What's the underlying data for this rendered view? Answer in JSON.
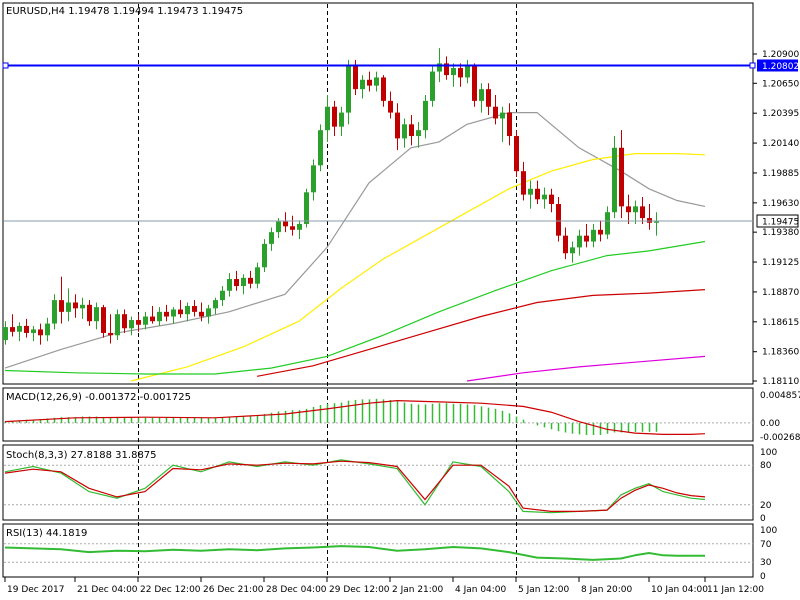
{
  "main_header": "EURUSD,H4  1.19478 1.19494 1.19473 1.19475",
  "price_axis": {
    "min": 1.1811,
    "max": 1.2119,
    "ticks": [
      "1.20900",
      "1.20650",
      "1.20395",
      "1.20140",
      "1.19885",
      "1.19630",
      "1.19380",
      "1.19125",
      "1.18870",
      "1.18615",
      "1.18360",
      "1.18110"
    ]
  },
  "price_markers": {
    "resistance": {
      "label": "1.20802",
      "value": 1.20802,
      "color": "#0000ff"
    },
    "current": {
      "label": "1.19475",
      "value": 1.19475
    }
  },
  "time_axis": [
    {
      "label": "19 Dec 2017",
      "bar": 0
    },
    {
      "label": "21 Dec 04:00",
      "bar": 10
    },
    {
      "label": "22 Dec 12:00",
      "bar": 19
    },
    {
      "label": "26 Dec 21:00",
      "bar": 28
    },
    {
      "label": "28 Dec 04:00",
      "bar": 37
    },
    {
      "label": "29 Dec 12:00",
      "bar": 46
    },
    {
      "label": "2 Jan 21:00",
      "bar": 55
    },
    {
      "label": "4 Jan 04:00",
      "bar": 64
    },
    {
      "label": "5 Jan 12:00",
      "bar": 73
    },
    {
      "label": "8 Jan 20:00",
      "bar": 82
    },
    {
      "label": "10 Jan 04:00",
      "bar": 92
    },
    {
      "label": "11 Jan 12:00",
      "bar": 100
    }
  ],
  "colors": {
    "bull": "#2ca02c",
    "bear": "#c00000",
    "ma_short": "#999999",
    "ma_mid": "#ffee00",
    "ma_long": "#22cc22",
    "ma_longer": "#cc0000",
    "ma_longest": "#dd00dd",
    "macd_hist": "#33bb33",
    "macd_signal": "#cc0000",
    "stoch_main": "#33bb33",
    "stoch_signal": "#cc0000",
    "rsi": "#33bb33"
  },
  "indicators": {
    "macd": {
      "header": "MACD(12,26,9) -0.001372 -0.001725",
      "ticks": [
        "0.004857",
        "0.00",
        "-0.002687"
      ],
      "max": 0.004857,
      "min": -0.002687
    },
    "stoch": {
      "header": "Stoch(8,3,3) 27.8188 31.8875",
      "ticks": [
        "100",
        "80",
        "20",
        "0"
      ]
    },
    "rsi": {
      "header": "RSI(13) 44.1819",
      "ticks": [
        "100",
        "70",
        "30",
        "0"
      ]
    }
  },
  "chart_data": {
    "type": "candlestick",
    "symbol": "EURUSD",
    "timeframe": "H4",
    "vertical_separators_at_bars": [
      19,
      46,
      73
    ],
    "candles": [
      [
        1.1846,
        1.1862,
        1.1842,
        1.1857
      ],
      [
        1.1857,
        1.1868,
        1.1849,
        1.1853
      ],
      [
        1.1853,
        1.1861,
        1.1845,
        1.1858
      ],
      [
        1.1858,
        1.1864,
        1.1848,
        1.1852
      ],
      [
        1.1852,
        1.1858,
        1.1845,
        1.1855
      ],
      [
        1.1855,
        1.186,
        1.1842,
        1.185
      ],
      [
        1.185,
        1.1865,
        1.1845,
        1.186
      ],
      [
        1.186,
        1.1885,
        1.1855,
        1.188
      ],
      [
        1.188,
        1.19,
        1.186,
        1.187
      ],
      [
        1.187,
        1.189,
        1.1862,
        1.1878
      ],
      [
        1.1878,
        1.1885,
        1.1865,
        1.1873
      ],
      [
        1.1873,
        1.1882,
        1.1864,
        1.1876
      ],
      [
        1.1876,
        1.188,
        1.1858,
        1.1862
      ],
      [
        1.1862,
        1.1878,
        1.1855,
        1.1874
      ],
      [
        1.1874,
        1.1876,
        1.1848,
        1.1852
      ],
      [
        1.1852,
        1.1868,
        1.1843,
        1.185
      ],
      [
        1.185,
        1.1872,
        1.1846,
        1.1868
      ],
      [
        1.1868,
        1.1872,
        1.1852,
        1.1856
      ],
      [
        1.1856,
        1.1866,
        1.185,
        1.1863
      ],
      [
        1.1863,
        1.1868,
        1.1853,
        1.1859
      ],
      [
        1.1859,
        1.187,
        1.1855,
        1.1866
      ],
      [
        1.1866,
        1.1875,
        1.186,
        1.1862
      ],
      [
        1.1862,
        1.1874,
        1.1858,
        1.187
      ],
      [
        1.187,
        1.1876,
        1.1862,
        1.1866
      ],
      [
        1.1866,
        1.1874,
        1.186,
        1.1872
      ],
      [
        1.1872,
        1.188,
        1.1865,
        1.1868
      ],
      [
        1.1868,
        1.1878,
        1.1862,
        1.1875
      ],
      [
        1.1875,
        1.188,
        1.1866,
        1.187
      ],
      [
        1.187,
        1.1878,
        1.1862,
        1.1866
      ],
      [
        1.1866,
        1.1876,
        1.186,
        1.1873
      ],
      [
        1.1873,
        1.1882,
        1.1868,
        1.188
      ],
      [
        1.188,
        1.1892,
        1.1875,
        1.1888
      ],
      [
        1.1888,
        1.1903,
        1.1883,
        1.1898
      ],
      [
        1.1898,
        1.1905,
        1.1888,
        1.1892
      ],
      [
        1.1892,
        1.1902,
        1.1885,
        1.1899
      ],
      [
        1.1899,
        1.1905,
        1.189,
        1.1894
      ],
      [
        1.1894,
        1.1912,
        1.189,
        1.1908
      ],
      [
        1.1908,
        1.1932,
        1.1904,
        1.1928
      ],
      [
        1.1928,
        1.1942,
        1.1922,
        1.1938
      ],
      [
        1.1938,
        1.195,
        1.1933,
        1.1947
      ],
      [
        1.1947,
        1.1955,
        1.1938,
        1.1943
      ],
      [
        1.1943,
        1.1952,
        1.1935,
        1.194
      ],
      [
        1.194,
        1.1948,
        1.1932,
        1.1945
      ],
      [
        1.1945,
        1.1975,
        1.1942,
        1.1972
      ],
      [
        1.1972,
        1.2,
        1.1965,
        1.1995
      ],
      [
        1.1995,
        1.203,
        1.199,
        1.2025
      ],
      [
        1.2025,
        1.2055,
        1.2015,
        1.2045
      ],
      [
        1.2045,
        1.205,
        1.202,
        1.2028
      ],
      [
        1.2028,
        1.2045,
        1.202,
        1.204
      ],
      [
        1.204,
        1.2085,
        1.203,
        1.208
      ],
      [
        1.208,
        1.2085,
        1.2055,
        1.206
      ],
      [
        1.206,
        1.2072,
        1.2052,
        1.2068
      ],
      [
        1.2068,
        1.2075,
        1.2058,
        1.2063
      ],
      [
        1.2063,
        1.2075,
        1.2058,
        1.207
      ],
      [
        1.207,
        1.2072,
        1.2045,
        1.205
      ],
      [
        1.205,
        1.2058,
        1.2035,
        1.204
      ],
      [
        1.204,
        1.2048,
        1.2008,
        1.2018
      ],
      [
        1.2018,
        1.2035,
        1.201,
        1.203
      ],
      [
        1.203,
        1.2038,
        1.2012,
        1.202
      ],
      [
        1.202,
        1.2032,
        1.201,
        1.2025
      ],
      [
        1.2025,
        1.2055,
        1.2018,
        1.205
      ],
      [
        1.205,
        1.208,
        1.2045,
        1.2075
      ],
      [
        1.2075,
        1.2095,
        1.2066,
        1.2082
      ],
      [
        1.2082,
        1.2088,
        1.2068,
        1.2072
      ],
      [
        1.2072,
        1.2082,
        1.2062,
        1.2078
      ],
      [
        1.2078,
        1.2082,
        1.2062,
        1.207
      ],
      [
        1.207,
        1.2085,
        1.2065,
        1.208
      ],
      [
        1.208,
        1.2082,
        1.2045,
        1.205
      ],
      [
        1.205,
        1.2065,
        1.204,
        1.206
      ],
      [
        1.206,
        1.2065,
        1.2038,
        1.2045
      ],
      [
        1.2045,
        1.2055,
        1.203,
        1.2035
      ],
      [
        1.2035,
        1.2045,
        1.2015,
        1.204
      ],
      [
        1.204,
        1.2048,
        1.2012,
        1.202
      ],
      [
        1.202,
        1.2025,
        1.1985,
        1.199
      ],
      [
        1.199,
        1.1998,
        1.1965,
        1.197
      ],
      [
        1.197,
        1.1982,
        1.1958,
        1.1975
      ],
      [
        1.1975,
        1.1982,
        1.1962,
        1.1966
      ],
      [
        1.1966,
        1.1976,
        1.1958,
        1.197
      ],
      [
        1.197,
        1.1975,
        1.1955,
        1.1962
      ],
      [
        1.1962,
        1.1968,
        1.193,
        1.1935
      ],
      [
        1.1935,
        1.1942,
        1.1915,
        1.192
      ],
      [
        1.192,
        1.193,
        1.1912,
        1.1925
      ],
      [
        1.1925,
        1.194,
        1.1918,
        1.1935
      ],
      [
        1.1935,
        1.1945,
        1.1925,
        1.193
      ],
      [
        1.193,
        1.1945,
        1.1925,
        1.194
      ],
      [
        1.194,
        1.1948,
        1.193,
        1.1936
      ],
      [
        1.1936,
        1.196,
        1.1932,
        1.1955
      ],
      [
        1.1955,
        1.202,
        1.195,
        1.201
      ],
      [
        1.201,
        1.2025,
        1.195,
        1.196
      ],
      [
        1.196,
        1.197,
        1.1945,
        1.1955
      ],
      [
        1.1955,
        1.1965,
        1.1945,
        1.196
      ],
      [
        1.196,
        1.1968,
        1.1945,
        1.195
      ],
      [
        1.195,
        1.1962,
        1.194,
        1.1946
      ],
      [
        1.1946,
        1.1955,
        1.1935,
        1.1947
      ]
    ],
    "moving_averages": [
      {
        "key": "ma_short",
        "points": [
          [
            0,
            1.1822
          ],
          [
            8,
            1.1838
          ],
          [
            16,
            1.1852
          ],
          [
            24,
            1.186
          ],
          [
            32,
            1.187
          ],
          [
            40,
            1.1885
          ],
          [
            46,
            1.1925
          ],
          [
            52,
            1.198
          ],
          [
            58,
            1.201
          ],
          [
            62,
            1.2015
          ],
          [
            66,
            1.203
          ],
          [
            72,
            1.204
          ],
          [
            76,
            1.204
          ],
          [
            82,
            1.201
          ],
          [
            88,
            1.199
          ],
          [
            92,
            1.1975
          ],
          [
            96,
            1.1965
          ],
          [
            100,
            1.196
          ]
        ]
      },
      {
        "key": "ma_mid",
        "points": [
          [
            18,
            1.1811
          ],
          [
            26,
            1.1823
          ],
          [
            34,
            1.184
          ],
          [
            42,
            1.1862
          ],
          [
            48,
            1.189
          ],
          [
            54,
            1.1915
          ],
          [
            60,
            1.1935
          ],
          [
            66,
            1.1955
          ],
          [
            72,
            1.1975
          ],
          [
            78,
            1.199
          ],
          [
            84,
            1.2
          ],
          [
            90,
            1.2005
          ],
          [
            96,
            1.2005
          ],
          [
            100,
            1.2004
          ]
        ]
      },
      {
        "key": "ma_long",
        "points": [
          [
            0,
            1.182
          ],
          [
            10,
            1.1818
          ],
          [
            20,
            1.1817
          ],
          [
            30,
            1.1817
          ],
          [
            38,
            1.1822
          ],
          [
            46,
            1.1832
          ],
          [
            54,
            1.185
          ],
          [
            62,
            1.187
          ],
          [
            70,
            1.1888
          ],
          [
            78,
            1.1905
          ],
          [
            86,
            1.1918
          ],
          [
            92,
            1.1922
          ],
          [
            100,
            1.193
          ]
        ]
      },
      {
        "key": "ma_longer",
        "points": [
          [
            36,
            1.1815
          ],
          [
            44,
            1.1824
          ],
          [
            52,
            1.1838
          ],
          [
            60,
            1.1852
          ],
          [
            68,
            1.1866
          ],
          [
            76,
            1.1878
          ],
          [
            84,
            1.1884
          ],
          [
            92,
            1.1886
          ],
          [
            100,
            1.1889
          ]
        ]
      },
      {
        "key": "ma_longest",
        "points": [
          [
            66,
            1.1811
          ],
          [
            74,
            1.1818
          ],
          [
            82,
            1.1823
          ],
          [
            90,
            1.1827
          ],
          [
            100,
            1.1832
          ]
        ]
      }
    ],
    "macd_hist": [
      0.0002,
      0.0003,
      0.0004,
      0.0005,
      0.0005,
      0.0006,
      0.0007,
      0.0008,
      0.0009,
      0.0009,
      0.0009,
      0.001,
      0.001,
      0.001,
      0.0009,
      0.0009,
      0.0009,
      0.0009,
      0.0008,
      0.0008,
      0.0008,
      0.0008,
      0.0008,
      0.0008,
      0.0008,
      0.0008,
      0.0008,
      0.0008,
      0.0008,
      0.0008,
      0.0008,
      0.0009,
      0.001,
      0.001,
      0.0011,
      0.0011,
      0.0012,
      0.0014,
      0.0016,
      0.0018,
      0.0019,
      0.002,
      0.002,
      0.0022,
      0.0025,
      0.0028,
      0.003,
      0.0031,
      0.0032,
      0.0035,
      0.0036,
      0.0037,
      0.0037,
      0.0038,
      0.0037,
      0.0036,
      0.0034,
      0.0032,
      0.003,
      0.0029,
      0.0029,
      0.003,
      0.0031,
      0.0031,
      0.003,
      0.003,
      0.0029,
      0.0028,
      0.0026,
      0.0024,
      0.0022,
      0.0019,
      0.0015,
      0.001,
      0.0005,
      0.0,
      -0.0004,
      -0.0007,
      -0.001,
      -0.0013,
      -0.0015,
      -0.0017,
      -0.0018,
      -0.0019,
      -0.0019,
      -0.0019,
      -0.0017,
      -0.0015,
      -0.0015,
      -0.0015,
      -0.0014,
      -0.0014,
      -0.0014,
      -0.0014
    ],
    "macd_signal": [
      [
        0,
        0.0002
      ],
      [
        10,
        0.0008
      ],
      [
        20,
        0.0009
      ],
      [
        30,
        0.0008
      ],
      [
        40,
        0.0014
      ],
      [
        46,
        0.0022
      ],
      [
        52,
        0.0031
      ],
      [
        56,
        0.0035
      ],
      [
        62,
        0.0033
      ],
      [
        68,
        0.0031
      ],
      [
        74,
        0.0026
      ],
      [
        78,
        0.0017
      ],
      [
        82,
        0.0002
      ],
      [
        86,
        -0.001
      ],
      [
        90,
        -0.0016
      ],
      [
        94,
        -0.0018
      ],
      [
        98,
        -0.0018
      ],
      [
        100,
        -0.0017
      ]
    ],
    "stoch_main": [
      [
        0,
        70
      ],
      [
        4,
        78
      ],
      [
        8,
        68
      ],
      [
        12,
        40
      ],
      [
        16,
        30
      ],
      [
        20,
        45
      ],
      [
        24,
        80
      ],
      [
        28,
        70
      ],
      [
        32,
        85
      ],
      [
        36,
        78
      ],
      [
        40,
        85
      ],
      [
        44,
        80
      ],
      [
        48,
        88
      ],
      [
        52,
        82
      ],
      [
        56,
        75
      ],
      [
        60,
        20
      ],
      [
        64,
        85
      ],
      [
        68,
        78
      ],
      [
        72,
        40
      ],
      [
        74,
        10
      ],
      [
        78,
        8
      ],
      [
        82,
        10
      ],
      [
        86,
        12
      ],
      [
        88,
        35
      ],
      [
        90,
        45
      ],
      [
        92,
        52
      ],
      [
        94,
        40
      ],
      [
        96,
        35
      ],
      [
        98,
        30
      ],
      [
        100,
        28
      ]
    ],
    "stoch_signal": [
      [
        0,
        68
      ],
      [
        4,
        74
      ],
      [
        8,
        70
      ],
      [
        12,
        45
      ],
      [
        16,
        32
      ],
      [
        20,
        40
      ],
      [
        24,
        75
      ],
      [
        28,
        73
      ],
      [
        32,
        82
      ],
      [
        36,
        80
      ],
      [
        40,
        83
      ],
      [
        44,
        82
      ],
      [
        48,
        86
      ],
      [
        52,
        84
      ],
      [
        56,
        78
      ],
      [
        60,
        28
      ],
      [
        64,
        80
      ],
      [
        68,
        80
      ],
      [
        72,
        48
      ],
      [
        74,
        15
      ],
      [
        78,
        10
      ],
      [
        82,
        10
      ],
      [
        86,
        12
      ],
      [
        88,
        30
      ],
      [
        90,
        42
      ],
      [
        92,
        50
      ],
      [
        94,
        45
      ],
      [
        96,
        38
      ],
      [
        98,
        34
      ],
      [
        100,
        32
      ]
    ],
    "rsi": [
      [
        0,
        62
      ],
      [
        4,
        60
      ],
      [
        8,
        58
      ],
      [
        12,
        52
      ],
      [
        16,
        55
      ],
      [
        20,
        54
      ],
      [
        24,
        57
      ],
      [
        28,
        55
      ],
      [
        32,
        58
      ],
      [
        36,
        56
      ],
      [
        40,
        60
      ],
      [
        44,
        62
      ],
      [
        48,
        65
      ],
      [
        52,
        63
      ],
      [
        56,
        55
      ],
      [
        60,
        58
      ],
      [
        64,
        63
      ],
      [
        68,
        60
      ],
      [
        72,
        52
      ],
      [
        76,
        40
      ],
      [
        80,
        38
      ],
      [
        84,
        35
      ],
      [
        88,
        38
      ],
      [
        90,
        45
      ],
      [
        92,
        50
      ],
      [
        94,
        45
      ],
      [
        96,
        44
      ],
      [
        100,
        44
      ]
    ]
  }
}
